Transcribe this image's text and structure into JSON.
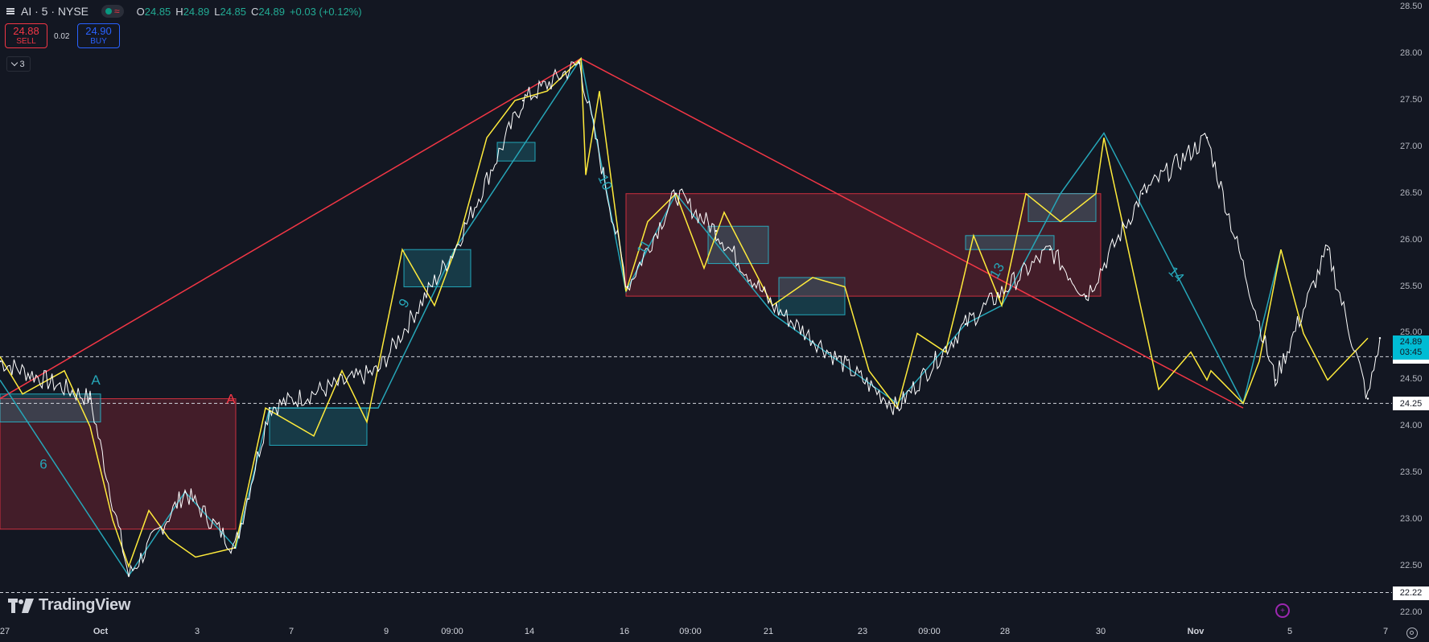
{
  "legend": {
    "symbol": "AI · 5 · NYSE",
    "open_key": "O",
    "open": "24.85",
    "high_key": "H",
    "high": "24.89",
    "low_key": "L",
    "low": "24.85",
    "close_key": "C",
    "close": "24.89",
    "change": "+0.03 (+0.12%)",
    "status_icon": "market-open-dot",
    "wave_icon": "wave-icon"
  },
  "trade": {
    "sell_price": "24.88",
    "sell_label": "SELL",
    "spread": "0.02",
    "buy_price": "24.90",
    "buy_label": "BUY"
  },
  "indicators_toggle": {
    "count": "3",
    "icon": "chevron-down-icon"
  },
  "brand": {
    "name": "TradingView"
  },
  "price_axis": {
    "ticks": [
      "28.50",
      "28.00",
      "27.50",
      "27.00",
      "26.50",
      "26.00",
      "25.50",
      "25.00",
      "24.50",
      "24.00",
      "23.50",
      "23.00",
      "22.50",
      "22.00"
    ],
    "current_price": "24.89",
    "countdown": "03:45",
    "line_labels": [
      "24.75",
      "24.25",
      "22.22"
    ]
  },
  "time_axis": {
    "labels": [
      "27",
      "Oct",
      "3",
      "7",
      "9",
      "09:00",
      "14",
      "16",
      "09:00",
      "21",
      "23",
      "09:00",
      "28",
      "30",
      "Nov",
      "5",
      "7"
    ]
  },
  "drawings": {
    "labels": [
      "A",
      "A",
      "6",
      "9",
      "10",
      "11",
      "13",
      "14"
    ]
  },
  "colors": {
    "background": "#131722",
    "price_series": "#ffffff",
    "zigzag_minor": "#ffeb3b",
    "zigzag_major": "#26a6b8",
    "trend_line": "#f23645",
    "demand_zone": "#26c6da",
    "supply_zone": "#f23645",
    "current_price": "#00bcd4"
  },
  "chart_data": {
    "type": "line",
    "symbol": "AI",
    "interval": "5",
    "exchange": "NYSE",
    "x": [
      "Sep 27",
      "Oct 1",
      "Oct 2",
      "Oct 3",
      "Oct 4",
      "Oct 7",
      "Oct 9",
      "Oct 10",
      "Oct 14",
      "Oct 15",
      "Oct 16",
      "Oct 17",
      "Oct 21",
      "Oct 22",
      "Oct 23",
      "Oct 24",
      "Oct 25",
      "Oct 28",
      "Oct 29",
      "Oct 30",
      "Oct 31",
      "Nov 1",
      "Nov 4",
      "Nov 5"
    ],
    "series": [
      {
        "values": [
          24.7,
          24.3,
          22.4,
          23.3,
          22.7,
          24.2,
          24.6,
          25.9,
          27.5,
          27.9,
          25.5,
          26.5,
          26.1,
          25.3,
          24.2,
          25.1,
          25.9,
          25.4,
          26.5,
          27.1,
          24.5,
          25.9,
          24.3,
          24.95
        ]
      }
    ],
    "horizontal_lines": [
      24.75,
      24.25,
      22.22
    ],
    "ylim": [
      22.0,
      28.5
    ],
    "grid": false,
    "legend": "none"
  }
}
